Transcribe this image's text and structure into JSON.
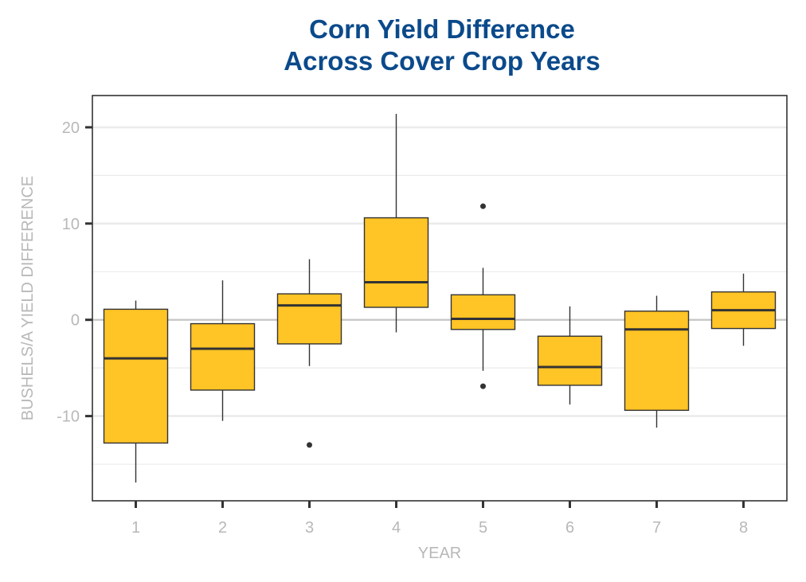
{
  "chart_data": {
    "type": "box",
    "title_lines": [
      "Corn Yield Difference",
      "Across Cover Crop Years"
    ],
    "xlabel": "YEAR",
    "ylabel": "BUSHELS/A YIELD DIFFERENCE",
    "categories": [
      "1",
      "2",
      "3",
      "4",
      "5",
      "6",
      "7",
      "8"
    ],
    "yticks": [
      -10,
      0,
      10,
      20
    ],
    "ylim": [
      -18.8,
      23.3
    ],
    "grid": true,
    "reference_line_y": 0,
    "box_color": "#ffc425",
    "outline_color": "#333333",
    "title_color": "#0b4a8b",
    "boxes": [
      {
        "x": "1",
        "min": -16.9,
        "q1": -12.8,
        "median": -4.0,
        "q3": 1.1,
        "max": 2.0,
        "outliers": []
      },
      {
        "x": "2",
        "min": -10.5,
        "q1": -7.3,
        "median": -3.0,
        "q3": -0.4,
        "max": 4.1,
        "outliers": []
      },
      {
        "x": "3",
        "min": -4.8,
        "q1": -2.5,
        "median": 1.5,
        "q3": 2.7,
        "max": 6.3,
        "outliers": [
          -13.0
        ]
      },
      {
        "x": "4",
        "min": -1.3,
        "q1": 1.3,
        "median": 3.9,
        "q3": 10.6,
        "max": 21.4,
        "outliers": []
      },
      {
        "x": "5",
        "min": -5.3,
        "q1": -1.0,
        "median": 0.1,
        "q3": 2.6,
        "max": 5.4,
        "outliers": [
          11.8,
          -6.9
        ]
      },
      {
        "x": "6",
        "min": -8.8,
        "q1": -6.8,
        "median": -4.9,
        "q3": -1.7,
        "max": 1.4,
        "outliers": []
      },
      {
        "x": "7",
        "min": -11.2,
        "q1": -9.4,
        "median": -1.0,
        "q3": 0.9,
        "max": 2.5,
        "outliers": []
      },
      {
        "x": "8",
        "min": -2.7,
        "q1": -0.9,
        "median": 1.0,
        "q3": 2.9,
        "max": 4.8,
        "outliers": []
      }
    ]
  }
}
